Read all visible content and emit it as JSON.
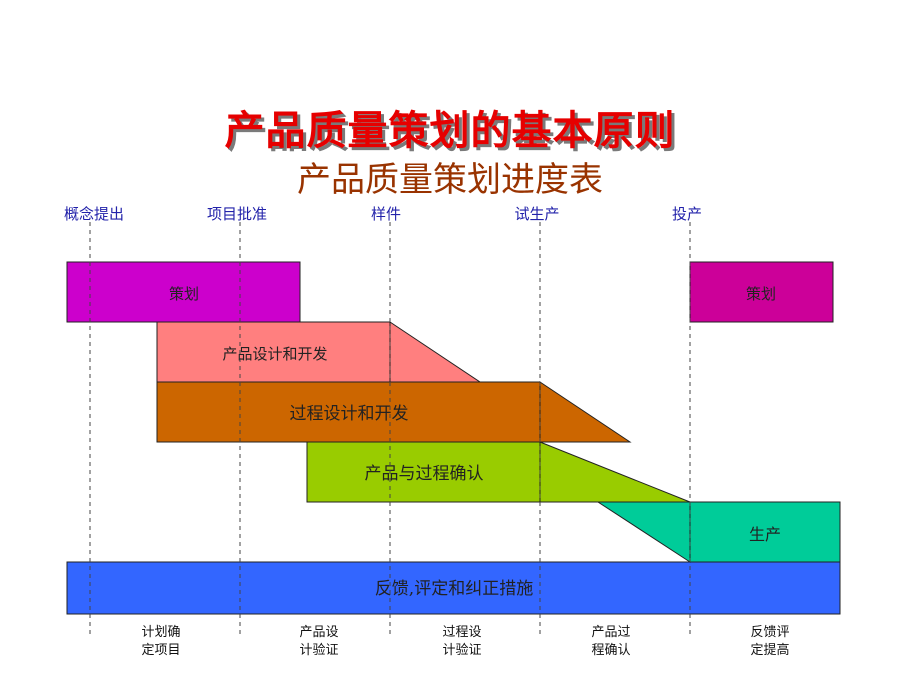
{
  "title": "产品质量策划的基本原则",
  "subtitle": "产品质量策划进度表",
  "milestones": [
    "概念提出",
    "项目批准",
    "样件",
    "试生产",
    "投产"
  ],
  "bars": {
    "planning": "策划",
    "product_design": "产品设计和开发",
    "process_design": "过程设计和开发",
    "validation": "产品与过程确认",
    "production": "生产",
    "planning_repeat": "策划",
    "feedback": "反馈,评定和纠正措施"
  },
  "phases": [
    [
      "计划确",
      "定项目"
    ],
    [
      "产品设",
      "计验证"
    ],
    [
      "过程设",
      "计验证"
    ],
    [
      "产品过",
      "程确认"
    ],
    [
      "反馈评",
      "定提高"
    ]
  ],
  "colors": {
    "planning": "#cc00cc",
    "product_design": "#ff7f7f",
    "process_design": "#cc6600",
    "validation": "#99cc00",
    "production": "#00cc99",
    "feedback": "#3366ff"
  }
}
